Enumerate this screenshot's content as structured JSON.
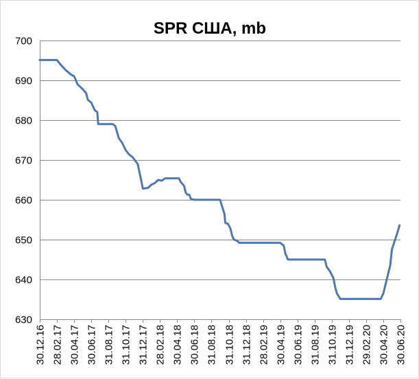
{
  "chart_data": {
    "type": "line",
    "title": "SPR США, mb",
    "xlabel": "",
    "ylabel": "",
    "ylim": [
      630,
      700
    ],
    "ytick_step": 10,
    "y_ticks": [
      "630",
      "640",
      "650",
      "660",
      "670",
      "680",
      "690",
      "700"
    ],
    "x_ticks": [
      "30.12.16",
      "28.02.17",
      "30.04.17",
      "30.06.17",
      "31.08.17",
      "31.10.17",
      "31.12.17",
      "28.02.18",
      "30.04.18",
      "30.06.18",
      "31.08.18",
      "31.10.18",
      "31.12.18",
      "28.02.19",
      "30.04.19",
      "30.06.19",
      "31.08.19",
      "31.10.19",
      "31.12.19",
      "29.02.20",
      "30.04.20",
      "30.06.20"
    ],
    "xlim": [
      0,
      21
    ],
    "grid": true,
    "legend": "none",
    "series": [
      {
        "color": "#4f78b0",
        "points": [
          [
            0.0,
            695.1
          ],
          [
            1.0,
            695.1
          ],
          [
            1.2,
            694.0
          ],
          [
            1.5,
            692.6
          ],
          [
            1.8,
            691.5
          ],
          [
            2.0,
            691.0
          ],
          [
            2.2,
            689.0
          ],
          [
            2.5,
            687.8
          ],
          [
            2.7,
            686.8
          ],
          [
            2.8,
            685.1
          ],
          [
            3.0,
            684.4
          ],
          [
            3.2,
            682.5
          ],
          [
            3.35,
            682.0
          ],
          [
            3.4,
            679.0
          ],
          [
            4.0,
            679.0
          ],
          [
            4.25,
            679.0
          ],
          [
            4.4,
            678.5
          ],
          [
            4.6,
            675.5
          ],
          [
            4.8,
            674.3
          ],
          [
            5.0,
            672.5
          ],
          [
            5.2,
            671.4
          ],
          [
            5.4,
            670.7
          ],
          [
            5.7,
            669.0
          ],
          [
            5.9,
            665.0
          ],
          [
            6.0,
            662.8
          ],
          [
            6.3,
            663.0
          ],
          [
            6.5,
            663.8
          ],
          [
            6.7,
            664.2
          ],
          [
            6.9,
            665.0
          ],
          [
            7.1,
            664.8
          ],
          [
            7.3,
            665.4
          ],
          [
            8.0,
            665.4
          ],
          [
            8.1,
            665.4
          ],
          [
            8.2,
            664.5
          ],
          [
            8.4,
            663.5
          ],
          [
            8.5,
            661.8
          ],
          [
            8.6,
            661.3
          ],
          [
            8.7,
            661.3
          ],
          [
            8.8,
            660.2
          ],
          [
            9.0,
            660.0
          ],
          [
            10.0,
            660.0
          ],
          [
            10.5,
            660.0
          ],
          [
            10.6,
            658.5
          ],
          [
            10.75,
            656.5
          ],
          [
            10.8,
            654.2
          ],
          [
            10.95,
            654.0
          ],
          [
            11.1,
            652.8
          ],
          [
            11.2,
            651.0
          ],
          [
            11.3,
            650.0
          ],
          [
            11.5,
            649.7
          ],
          [
            11.6,
            649.2
          ],
          [
            12.0,
            649.2
          ],
          [
            13.0,
            649.2
          ],
          [
            14.0,
            649.2
          ],
          [
            14.2,
            648.5
          ],
          [
            14.3,
            646.5
          ],
          [
            14.45,
            645.0
          ],
          [
            15.0,
            645.0
          ],
          [
            16.0,
            645.0
          ],
          [
            16.6,
            645.0
          ],
          [
            16.7,
            643.2
          ],
          [
            16.9,
            642.0
          ],
          [
            17.1,
            640.3
          ],
          [
            17.2,
            638.0
          ],
          [
            17.3,
            636.5
          ],
          [
            17.5,
            635.1
          ],
          [
            18.0,
            635.1
          ],
          [
            19.0,
            635.1
          ],
          [
            19.85,
            635.1
          ],
          [
            20.0,
            636.5
          ],
          [
            20.2,
            640.0
          ],
          [
            20.4,
            643.5
          ],
          [
            20.5,
            647.5
          ],
          [
            20.65,
            649.5
          ],
          [
            20.8,
            651.5
          ],
          [
            20.95,
            653.6
          ]
        ]
      }
    ]
  }
}
